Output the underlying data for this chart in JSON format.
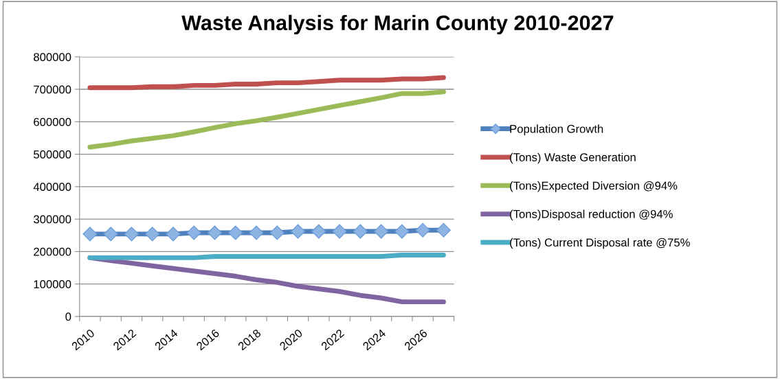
{
  "chart_data": {
    "type": "line",
    "title": "Waste Analysis for Marin County 2010-2027",
    "categories": [
      "2010",
      null,
      "2012",
      null,
      "2014",
      null,
      "2016",
      null,
      "2018",
      null,
      "2020",
      null,
      "2022",
      null,
      "2024",
      null,
      "2026",
      null
    ],
    "series": [
      {
        "name": "Population Growth",
        "color": "#4f81bd",
        "marker": "diamond",
        "values": [
          254000,
          254000,
          254000,
          254000,
          254000,
          258000,
          258000,
          258000,
          258000,
          258000,
          262000,
          262000,
          262000,
          262000,
          262000,
          262000,
          266000,
          266000
        ]
      },
      {
        "name": "(Tons) Waste Generation",
        "color": "#c0504d",
        "values": [
          705000,
          705000,
          705000,
          708000,
          708000,
          712000,
          712000,
          716000,
          716000,
          720000,
          720000,
          724000,
          728000,
          728000,
          728000,
          732000,
          732000,
          736000
        ]
      },
      {
        "name": "(Tons)Expected Diversion @94%",
        "color": "#9bbb59",
        "values": [
          522000,
          530000,
          541000,
          549000,
          557000,
          569000,
          582000,
          594000,
          603000,
          614000,
          626000,
          638000,
          650000,
          662000,
          674000,
          687000,
          687000,
          692000
        ]
      },
      {
        "name": "(Tons)Disposal reduction @94%",
        "color": "#8064a2",
        "values": [
          181000,
          172000,
          164000,
          156000,
          148000,
          140000,
          132000,
          124000,
          113000,
          105000,
          93000,
          85000,
          77000,
          65000,
          57000,
          45000,
          45000,
          45000
        ]
      },
      {
        "name": "(Tons) Current Disposal rate @75%",
        "color": "#4bacc6",
        "values": [
          181000,
          181000,
          181000,
          181000,
          181000,
          181000,
          185000,
          185000,
          185000,
          185000,
          185000,
          185000,
          185000,
          185000,
          185000,
          189000,
          189000,
          189000
        ]
      }
    ],
    "ylim": [
      0,
      800000
    ],
    "yticks": [
      0,
      100000,
      200000,
      300000,
      400000,
      500000,
      600000,
      700000,
      800000
    ],
    "grid": "y",
    "legend": "right",
    "marker": "none",
    "line_style": "solid"
  }
}
